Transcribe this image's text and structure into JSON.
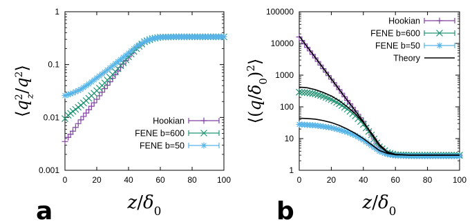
{
  "colors": {
    "hookian": "#7e3fa0",
    "fene600": "#1f9474",
    "fene50": "#56b4e9",
    "theory": "#000000"
  },
  "chart_data": [
    {
      "panel": "a",
      "type": "line",
      "xlabel": "z/δ0",
      "ylabel": "⟨q_z^2/q^2⟩",
      "ylog": true,
      "xlim": [
        0,
        100
      ],
      "ylim": [
        0.001,
        1
      ],
      "x_ticks": [
        "0",
        "20",
        "40",
        "60",
        "80",
        "100"
      ],
      "y_ticks": [
        "0.001",
        "0.01",
        "0.1",
        "1"
      ],
      "legend_position": "bottom-right",
      "panel_label": "a",
      "series": [
        {
          "name": "Hookian",
          "marker": "plus",
          "color_key": "hookian",
          "x": [
            0,
            2,
            5,
            10,
            15,
            20,
            25,
            30,
            35,
            40,
            45,
            50,
            55,
            60,
            70,
            80,
            90,
            100
          ],
          "y": [
            0.0035,
            0.0042,
            0.0055,
            0.009,
            0.014,
            0.022,
            0.035,
            0.055,
            0.088,
            0.14,
            0.21,
            0.27,
            0.31,
            0.33,
            0.335,
            0.335,
            0.335,
            0.335
          ]
        },
        {
          "name": "FENE b=600",
          "marker": "cross",
          "color_key": "fene600",
          "x": [
            0,
            2,
            5,
            10,
            15,
            20,
            25,
            30,
            35,
            40,
            45,
            50,
            55,
            60,
            70,
            80,
            90,
            100
          ],
          "y": [
            0.0095,
            0.011,
            0.013,
            0.017,
            0.023,
            0.032,
            0.045,
            0.065,
            0.095,
            0.14,
            0.2,
            0.27,
            0.31,
            0.33,
            0.335,
            0.335,
            0.335,
            0.335
          ]
        },
        {
          "name": "FENE b=50",
          "marker": "star",
          "color_key": "fene50",
          "x": [
            0,
            2,
            5,
            10,
            15,
            20,
            25,
            30,
            35,
            40,
            45,
            50,
            55,
            60,
            70,
            80,
            90,
            100
          ],
          "y": [
            0.026,
            0.027,
            0.029,
            0.034,
            0.043,
            0.056,
            0.072,
            0.095,
            0.125,
            0.165,
            0.22,
            0.27,
            0.31,
            0.33,
            0.335,
            0.335,
            0.335,
            0.335
          ]
        }
      ]
    },
    {
      "panel": "b",
      "type": "line",
      "xlabel": "z/δ0",
      "ylabel": "⟨(q/δ0)^2⟩",
      "ylog": true,
      "xlim": [
        0,
        100
      ],
      "ylim": [
        1,
        100000
      ],
      "x_ticks": [
        "0",
        "20",
        "40",
        "60",
        "80",
        "100"
      ],
      "y_ticks": [
        "1",
        "10",
        "100",
        "1000",
        "10000",
        "100000"
      ],
      "legend_position": "top-right",
      "panel_label": "b",
      "series": [
        {
          "name": "Hookian",
          "marker": "plus",
          "color_key": "hookian",
          "x": [
            0,
            5,
            10,
            15,
            20,
            25,
            30,
            35,
            40,
            45,
            50,
            55,
            60,
            70,
            80,
            90,
            100
          ],
          "y": [
            16000,
            7500,
            3500,
            1600,
            750,
            350,
            160,
            75,
            35,
            13,
            5.5,
            3.5,
            3,
            3,
            3,
            3,
            3
          ]
        },
        {
          "name": "FENE b=600",
          "marker": "cross",
          "color_key": "fene600",
          "x": [
            0,
            5,
            10,
            15,
            20,
            25,
            30,
            35,
            40,
            45,
            50,
            55,
            60,
            70,
            80,
            90,
            100
          ],
          "y": [
            290,
            280,
            255,
            215,
            170,
            125,
            85,
            52,
            28,
            13,
            5.5,
            3.6,
            3.1,
            3,
            3,
            3,
            3
          ]
        },
        {
          "name": "FENE b=50",
          "marker": "star",
          "color_key": "fene50",
          "x": [
            0,
            5,
            10,
            15,
            20,
            25,
            30,
            35,
            40,
            45,
            50,
            55,
            60,
            70,
            80,
            90,
            100
          ],
          "y": [
            28,
            27,
            26,
            24,
            22,
            19,
            16,
            12.5,
            9,
            6,
            4,
            3.2,
            2.9,
            2.8,
            2.8,
            2.8,
            2.8
          ]
        },
        {
          "name": "Theory",
          "marker": "none",
          "color_key": "theory",
          "x": [
            0,
            5,
            10,
            15,
            20,
            25,
            30,
            35,
            40,
            45,
            50,
            55,
            60,
            70,
            80,
            90,
            100
          ],
          "y": [
            17000,
            7800,
            3600,
            1650,
            760,
            350,
            160,
            75,
            34,
            14,
            6,
            3.6,
            3.1,
            3,
            3,
            3,
            3
          ]
        },
        {
          "name": "",
          "marker": "none",
          "color_key": "theory",
          "x": [
            0,
            5,
            10,
            15,
            20,
            25,
            30,
            35,
            40,
            45,
            50,
            55,
            60,
            70,
            80,
            90,
            100
          ],
          "y": [
            420,
            400,
            350,
            285,
            220,
            155,
            100,
            60,
            32,
            15,
            6.5,
            3.8,
            3.2,
            3,
            3,
            3,
            3
          ]
        },
        {
          "name": "",
          "marker": "none",
          "color_key": "theory",
          "x": [
            0,
            5,
            10,
            15,
            20,
            25,
            30,
            35,
            40,
            45,
            50,
            55,
            60,
            70,
            80,
            90,
            100
          ],
          "y": [
            44,
            43,
            41,
            37,
            32,
            26,
            20,
            14.5,
            10,
            6.5,
            4.2,
            3.4,
            3.1,
            3,
            3,
            3,
            3
          ]
        }
      ]
    }
  ]
}
